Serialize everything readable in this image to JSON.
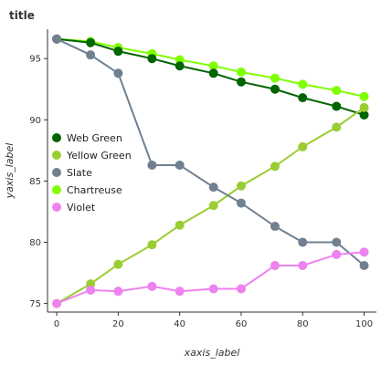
{
  "chart_data": {
    "type": "line",
    "title": "title",
    "xlabel": "xaxis_label",
    "ylabel": "yaxis_label",
    "xlim": [
      -3,
      104
    ],
    "ylim": [
      74.3,
      97.4
    ],
    "xticks": [
      0,
      20,
      40,
      60,
      80,
      100
    ],
    "yticks": [
      75,
      80,
      85,
      90,
      95
    ],
    "x": [
      0,
      11,
      20,
      31,
      40,
      51,
      60,
      71,
      80,
      91,
      100
    ],
    "grid": false,
    "legend_position": "center-left",
    "series": [
      {
        "name": "Web Green",
        "color": "#006400",
        "values": [
          96.6,
          96.3,
          95.6,
          95.0,
          94.4,
          93.8,
          93.1,
          92.5,
          91.8,
          91.1,
          90.4
        ]
      },
      {
        "name": "Yellow Green",
        "color": "#9ACD32",
        "values": [
          75.0,
          76.6,
          78.2,
          79.8,
          81.4,
          83.0,
          84.6,
          86.2,
          87.8,
          89.4,
          91.0
        ]
      },
      {
        "name": "Slate",
        "color": "#708090",
        "values": [
          96.6,
          95.3,
          93.8,
          86.3,
          86.3,
          84.5,
          83.2,
          81.3,
          80.0,
          80.0,
          78.1
        ]
      },
      {
        "name": "Chartreuse",
        "color": "#7FFF00",
        "values": [
          96.6,
          96.4,
          95.9,
          95.4,
          94.9,
          94.4,
          93.9,
          93.4,
          92.9,
          92.4,
          91.9
        ]
      },
      {
        "name": "Violet",
        "color": "#EE82EE",
        "values": [
          75.0,
          76.1,
          76.0,
          76.4,
          76.0,
          76.2,
          76.2,
          78.1,
          78.1,
          79.0,
          79.2
        ]
      }
    ]
  }
}
